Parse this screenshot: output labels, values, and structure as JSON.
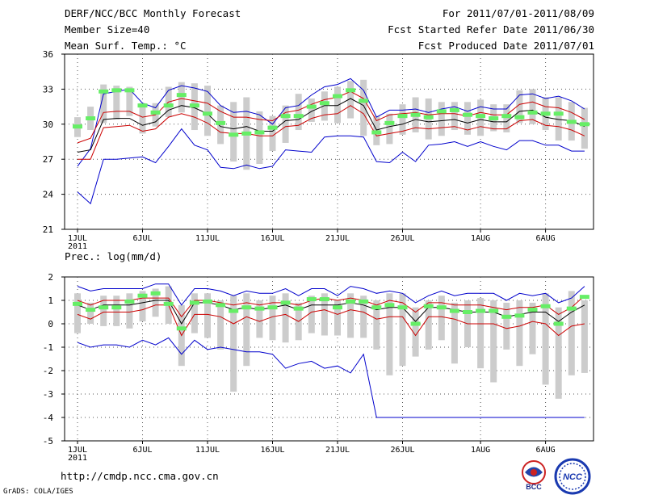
{
  "header": {
    "title": "DERF/NCC/BCC Monthly Forecast",
    "member_size": "Member Size=40",
    "variable": "Mean Surf. Temp.: °C",
    "period": "For 2011/07/01-2011/08/09",
    "started": "Fcst Started Refer Date 2011/06/30",
    "produced": "Fcst Produced Date 2011/07/01"
  },
  "footer": {
    "url": "http://cmdp.ncc.cma.gov.cn",
    "credit": "GrADS: COLA/IGES",
    "logo_bcc": "BCC",
    "logo_ncc": "NCC"
  },
  "colors": {
    "max": "#0000cc",
    "min": "#0000cc",
    "upper": "#cc0000",
    "lower": "#cc0000",
    "mean": "#000000",
    "box": "#cccccc",
    "marker": "#66ee66"
  },
  "chart_data": [
    {
      "type": "line",
      "title": "Mean Surf. Temp.: °C",
      "ylim": [
        21,
        36
      ],
      "yticks": [
        21,
        24,
        27,
        30,
        33,
        36
      ],
      "xlabels": [
        "1JUL",
        "6JUL",
        "11JUL",
        "16JUL",
        "21JUL",
        "26JUL",
        "1AUG",
        "6AUG"
      ],
      "xlabel_days": [
        1,
        6,
        11,
        16,
        21,
        26,
        32,
        37
      ],
      "year_label": "2011",
      "days": 40,
      "series": [
        {
          "name": "max",
          "color": "#0000cc",
          "values": [
            26.4,
            27.9,
            32.6,
            32.8,
            33.0,
            31.8,
            31.4,
            32.9,
            33.3,
            33.1,
            32.8,
            31.6,
            31.0,
            31.1,
            30.8,
            30.0,
            31.4,
            31.6,
            32.5,
            33.2,
            33.4,
            33.9,
            32.9,
            30.6,
            31.2,
            31.2,
            31.3,
            31.0,
            31.3,
            31.5,
            31.1,
            31.5,
            31.3,
            31.3,
            32.5,
            32.6,
            32.2,
            32.4,
            32.0,
            31.3
          ]
        },
        {
          "name": "upper",
          "color": "#cc0000",
          "values": [
            28.4,
            28.8,
            31.0,
            31.1,
            31.1,
            30.6,
            30.8,
            31.9,
            32.2,
            32.0,
            31.8,
            31.1,
            30.6,
            30.6,
            30.4,
            30.3,
            31.0,
            31.2,
            31.7,
            32.1,
            32.3,
            32.8,
            32.2,
            30.3,
            30.8,
            30.9,
            31.0,
            30.8,
            30.9,
            30.9,
            30.7,
            31.0,
            30.8,
            30.8,
            31.7,
            31.9,
            31.5,
            31.4,
            31.0,
            30.4
          ]
        },
        {
          "name": "mean",
          "color": "#000000",
          "values": [
            27.6,
            27.8,
            30.4,
            30.5,
            30.5,
            29.9,
            30.2,
            31.2,
            31.6,
            31.4,
            30.9,
            29.8,
            29.6,
            29.8,
            29.4,
            29.4,
            30.3,
            30.4,
            31.1,
            31.6,
            31.6,
            32.2,
            31.6,
            29.5,
            29.8,
            30.0,
            30.4,
            30.2,
            30.3,
            30.4,
            30.1,
            30.4,
            30.2,
            30.2,
            31.1,
            31.2,
            30.6,
            30.4,
            30.3,
            29.8
          ]
        },
        {
          "name": "lower",
          "color": "#cc0000",
          "values": [
            27.0,
            27.0,
            29.7,
            29.8,
            29.9,
            29.4,
            29.6,
            30.6,
            30.9,
            30.6,
            30.1,
            29.3,
            29.2,
            29.2,
            29.0,
            29.0,
            29.8,
            29.9,
            30.5,
            30.8,
            30.9,
            31.6,
            30.9,
            29.0,
            29.2,
            29.4,
            29.7,
            29.6,
            29.7,
            29.8,
            29.5,
            29.8,
            29.6,
            29.6,
            30.3,
            30.4,
            29.9,
            29.8,
            29.5,
            29.0
          ]
        },
        {
          "name": "min",
          "color": "#0000cc",
          "values": [
            24.2,
            23.2,
            27.0,
            27.0,
            27.1,
            27.2,
            26.7,
            28.1,
            29.6,
            28.2,
            27.8,
            26.3,
            26.2,
            26.5,
            26.2,
            26.4,
            27.8,
            27.7,
            27.6,
            28.9,
            29.0,
            29.0,
            28.9,
            26.8,
            26.7,
            27.6,
            26.8,
            28.2,
            28.3,
            28.5,
            28.1,
            28.5,
            28.1,
            27.8,
            28.6,
            28.6,
            28.2,
            28.2,
            27.7,
            27.7
          ]
        }
      ],
      "boxes": [
        [
          28.9,
          30.6
        ],
        [
          29.5,
          31.5
        ],
        [
          30.1,
          33.4
        ],
        [
          30.4,
          33.3
        ],
        [
          30.7,
          33.2
        ],
        [
          29.2,
          31.8
        ],
        [
          29.8,
          31.8
        ],
        [
          30.6,
          33.2
        ],
        [
          31.0,
          33.6
        ],
        [
          29.5,
          33.5
        ],
        [
          29.0,
          33.3
        ],
        [
          28.3,
          31.6
        ],
        [
          26.8,
          31.9
        ],
        [
          26.1,
          32.3
        ],
        [
          26.6,
          31.1
        ],
        [
          27.7,
          30.7
        ],
        [
          28.4,
          31.6
        ],
        [
          29.5,
          32.6
        ],
        [
          30.2,
          32.2
        ],
        [
          30.3,
          32.8
        ],
        [
          30.1,
          33.2
        ],
        [
          30.5,
          33.7
        ],
        [
          29.0,
          33.8
        ],
        [
          28.2,
          30.7
        ],
        [
          28.3,
          30.9
        ],
        [
          29.1,
          31.7
        ],
        [
          29.3,
          32.3
        ],
        [
          28.7,
          32.2
        ],
        [
          29.0,
          31.9
        ],
        [
          29.5,
          31.9
        ],
        [
          29.1,
          31.9
        ],
        [
          29.0,
          32.1
        ],
        [
          29.4,
          31.7
        ],
        [
          29.3,
          31.7
        ],
        [
          30.1,
          32.9
        ],
        [
          30.0,
          33.0
        ],
        [
          29.5,
          32.3
        ],
        [
          28.6,
          32.3
        ],
        [
          28.6,
          31.9
        ],
        [
          27.9,
          31.4
        ]
      ],
      "markers": [
        29.8,
        30.5,
        32.8,
        32.9,
        32.9,
        31.6,
        31.0,
        31.6,
        32.5,
        31.6,
        30.9,
        30.1,
        29.1,
        29.2,
        29.3,
        29.7,
        30.7,
        30.7,
        31.5,
        31.8,
        32.4,
        32.9,
        32.0,
        29.3,
        30.1,
        30.7,
        30.8,
        30.6,
        31.1,
        31.2,
        30.8,
        30.7,
        30.5,
        30.7,
        30.6,
        31.0,
        30.9,
        30.9,
        30.2,
        30.0
      ]
    },
    {
      "type": "line",
      "title": "Prec.: log(mm/d)",
      "ylim": [
        -5,
        2
      ],
      "yticks": [
        -5,
        -4,
        -3,
        -2,
        -1,
        0,
        1,
        2
      ],
      "xlabels": [
        "1JUL",
        "6JUL",
        "11JUL",
        "16JUL",
        "21JUL",
        "26JUL",
        "1AUG",
        "6AUG"
      ],
      "xlabel_days": [
        1,
        6,
        11,
        16,
        21,
        26,
        32,
        37
      ],
      "year_label": "2011",
      "days": 40,
      "series": [
        {
          "name": "max",
          "color": "#0000cc",
          "values": [
            1.6,
            1.4,
            1.5,
            1.5,
            1.5,
            1.5,
            1.7,
            1.7,
            0.8,
            1.5,
            1.5,
            1.4,
            1.2,
            1.4,
            1.3,
            1.3,
            1.5,
            1.2,
            1.5,
            1.5,
            1.2,
            1.6,
            1.5,
            1.3,
            1.4,
            1.3,
            0.9,
            1.2,
            1.4,
            1.2,
            1.3,
            1.3,
            1.3,
            1.0,
            1.3,
            1.2,
            1.3,
            0.9,
            1.1,
            1.6
          ]
        },
        {
          "name": "upper",
          "color": "#cc0000",
          "values": [
            1.0,
            0.8,
            1.0,
            1.0,
            1.0,
            1.1,
            1.1,
            1.1,
            0.3,
            1.0,
            1.0,
            0.9,
            0.8,
            0.9,
            0.8,
            0.9,
            0.9,
            0.8,
            1.0,
            1.1,
            1.0,
            1.1,
            1.0,
            0.8,
            1.0,
            0.9,
            0.5,
            0.9,
            0.9,
            0.8,
            0.8,
            0.8,
            0.7,
            0.6,
            0.7,
            0.7,
            0.8,
            0.4,
            0.7,
            1.2
          ]
        },
        {
          "name": "mean",
          "color": "#000000",
          "values": [
            0.8,
            0.6,
            0.8,
            0.8,
            0.8,
            0.9,
            1.0,
            1.0,
            0.0,
            0.9,
            0.9,
            0.8,
            0.6,
            0.7,
            0.6,
            0.7,
            0.8,
            0.6,
            0.8,
            0.8,
            0.8,
            0.9,
            0.8,
            0.6,
            0.7,
            0.7,
            0.1,
            0.7,
            0.7,
            0.6,
            0.5,
            0.5,
            0.5,
            0.3,
            0.4,
            0.5,
            0.5,
            0.1,
            0.5,
            0.8
          ]
        },
        {
          "name": "lower",
          "color": "#cc0000",
          "values": [
            0.4,
            0.2,
            0.5,
            0.5,
            0.5,
            0.6,
            0.8,
            0.8,
            -0.5,
            0.4,
            0.4,
            0.3,
            0.0,
            0.3,
            0.1,
            0.3,
            0.4,
            0.1,
            0.5,
            0.6,
            0.4,
            0.6,
            0.5,
            0.2,
            0.3,
            0.3,
            -0.5,
            0.3,
            0.3,
            0.2,
            0.0,
            0.0,
            0.0,
            -0.2,
            -0.1,
            0.1,
            0.0,
            -0.5,
            -0.1,
            0.0
          ]
        },
        {
          "name": "min",
          "color": "#0000cc",
          "values": [
            -0.8,
            -1.0,
            -0.9,
            -0.9,
            -1.0,
            -0.7,
            -0.9,
            -0.6,
            -1.3,
            -0.7,
            -1.1,
            -1.0,
            -1.1,
            -1.2,
            -1.2,
            -1.3,
            -1.9,
            -1.7,
            -1.6,
            -1.9,
            -1.8,
            -2.1,
            -1.3,
            -4.0,
            -4.0,
            -4.0,
            -4.0,
            -4.0,
            -4.0,
            -4.0,
            -4.0,
            -4.0,
            -4.0,
            -4.0,
            -4.0,
            -4.0,
            -4.0,
            -4.0,
            -4.0,
            -4.0
          ]
        }
      ],
      "boxes": [
        [
          -0.4,
          1.3
        ],
        [
          0.0,
          0.9
        ],
        [
          -0.1,
          1.2
        ],
        [
          -0.1,
          1.2
        ],
        [
          -0.2,
          1.3
        ],
        [
          0.1,
          1.4
        ],
        [
          0.3,
          1.5
        ],
        [
          0.0,
          1.6
        ],
        [
          -1.8,
          0.8
        ],
        [
          -0.4,
          1.3
        ],
        [
          -0.6,
          1.3
        ],
        [
          -1.1,
          1.0
        ],
        [
          -2.9,
          1.2
        ],
        [
          -1.8,
          1.3
        ],
        [
          -0.6,
          1.0
        ],
        [
          -0.7,
          1.2
        ],
        [
          -0.8,
          1.3
        ],
        [
          -0.7,
          0.9
        ],
        [
          -0.4,
          1.2
        ],
        [
          -0.5,
          1.3
        ],
        [
          -0.5,
          1.0
        ],
        [
          -0.6,
          1.3
        ],
        [
          -0.6,
          1.2
        ],
        [
          -1.1,
          1.0
        ],
        [
          -2.2,
          1.3
        ],
        [
          -1.8,
          1.3
        ],
        [
          -1.4,
          0.7
        ],
        [
          -1.1,
          1.0
        ],
        [
          -0.7,
          1.2
        ],
        [
          -1.7,
          0.9
        ],
        [
          -1.0,
          1.0
        ],
        [
          -1.9,
          1.1
        ],
        [
          -2.5,
          1.0
        ],
        [
          -1.1,
          0.9
        ],
        [
          -1.8,
          1.0
        ],
        [
          -1.3,
          0.9
        ],
        [
          -2.6,
          1.3
        ],
        [
          -3.2,
          0.7
        ],
        [
          -2.2,
          1.4
        ],
        [
          -2.1,
          1.0
        ]
      ],
      "markers": [
        0.85,
        0.6,
        0.7,
        0.7,
        0.95,
        1.2,
        1.3,
        0.85,
        -0.2,
        0.9,
        0.95,
        0.8,
        0.55,
        0.7,
        0.65,
        0.7,
        0.9,
        0.65,
        1.05,
        1.05,
        0.7,
        0.95,
        0.95,
        0.7,
        0.8,
        0.7,
        0.0,
        0.75,
        0.7,
        0.55,
        0.5,
        0.55,
        0.55,
        0.3,
        0.35,
        0.6,
        0.75,
        0.0,
        0.65,
        1.15
      ]
    }
  ]
}
